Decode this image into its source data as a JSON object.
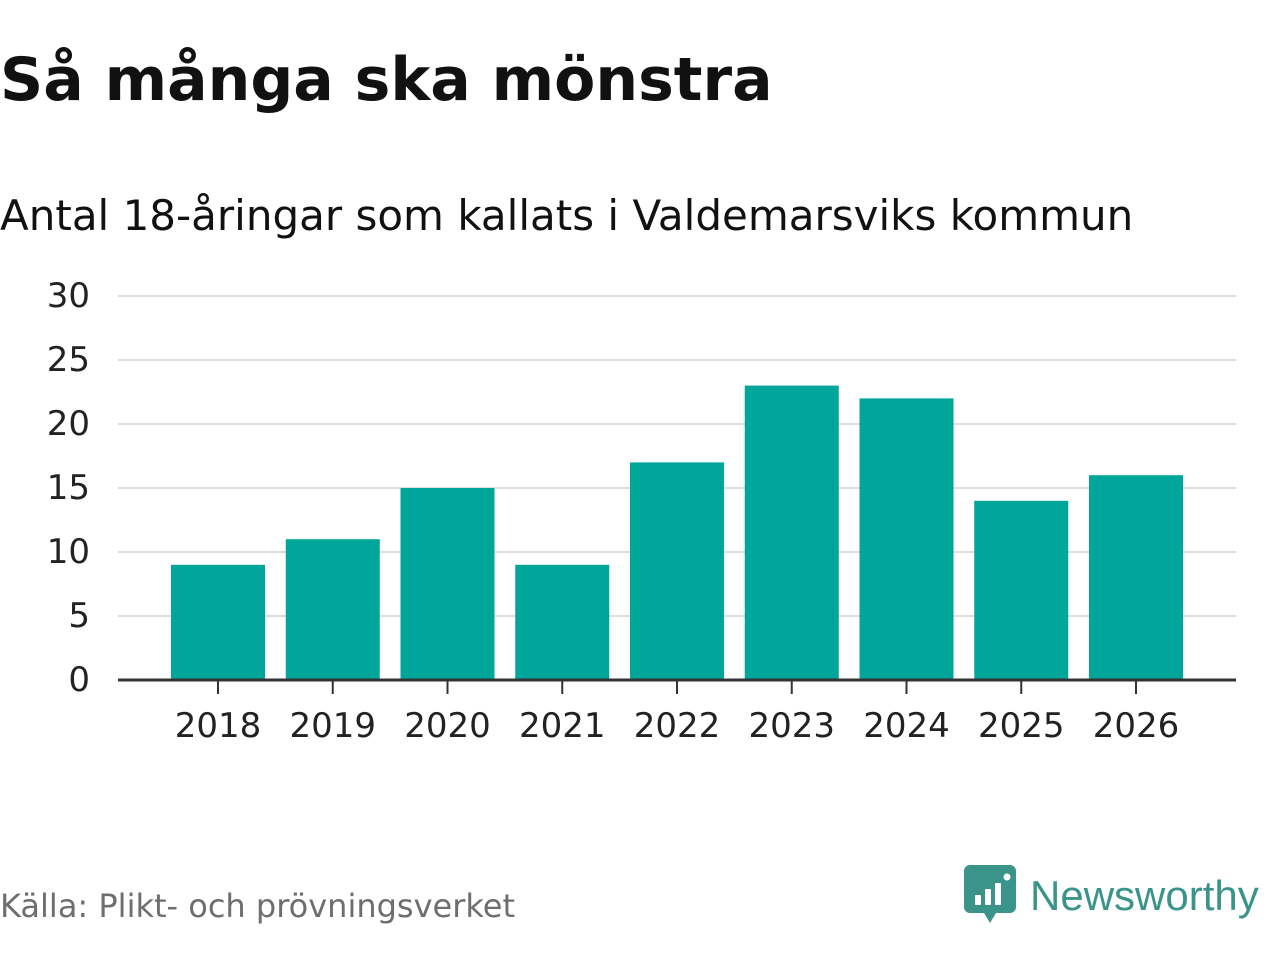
{
  "header": {
    "title": "Så många ska mönstra",
    "subtitle": "Antal 18-åringar som kallats i Valdemarsviks kommun"
  },
  "footer": {
    "source": "Källa: Plikt- och prövningsverket",
    "brand": "Newsworthy"
  },
  "colors": {
    "bar": "#00a69a",
    "grid": "#dddddd",
    "axis": "#333333",
    "brand": "#3b9489"
  },
  "icons": {
    "brand_logo": "newsworthy-logo-icon"
  },
  "chart_data": {
    "type": "bar",
    "title": "Så många ska mönstra",
    "subtitle": "Antal 18-åringar som kallats i Valdemarsviks kommun",
    "xlabel": "",
    "ylabel": "",
    "categories": [
      "2018",
      "2019",
      "2020",
      "2021",
      "2022",
      "2023",
      "2024",
      "2025",
      "2026"
    ],
    "values": [
      9,
      11,
      15,
      9,
      17,
      23,
      22,
      14,
      16
    ],
    "ylim": [
      0,
      30
    ],
    "yticks": [
      0,
      5,
      10,
      15,
      20,
      25,
      30
    ],
    "grid": true,
    "legend": "none"
  }
}
